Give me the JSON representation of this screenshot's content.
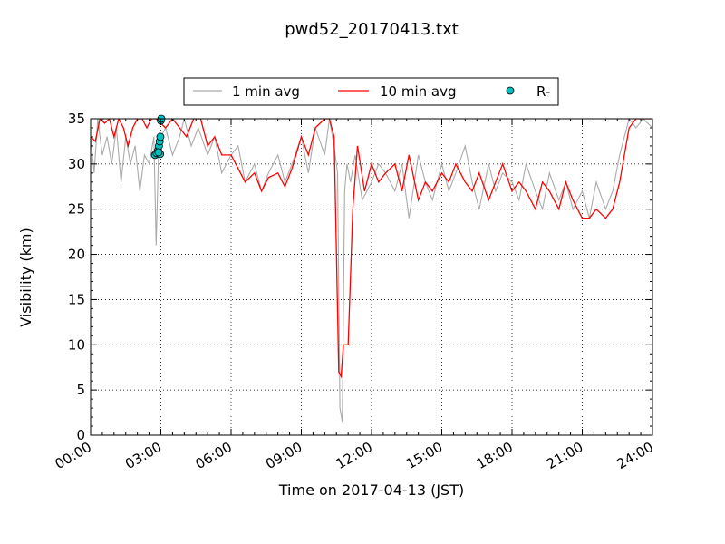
{
  "chart_data": {
    "type": "line",
    "title": "pwd52_20170413.txt",
    "xlabel": "Time on 2017-04-13 (JST)",
    "ylabel": "Visibility (km)",
    "xlim_hours": [
      0,
      24
    ],
    "ylim": [
      0,
      35
    ],
    "x_ticks": [
      "00:00",
      "03:00",
      "06:00",
      "09:00",
      "12:00",
      "15:00",
      "18:00",
      "21:00",
      "24:00"
    ],
    "x_tick_hours": [
      0,
      3,
      6,
      9,
      12,
      15,
      18,
      21,
      24
    ],
    "y_ticks": [
      0,
      5,
      10,
      15,
      20,
      25,
      30,
      35
    ],
    "grid": true,
    "legend_position": "top-center",
    "series": [
      {
        "name": "1 min avg",
        "color": "#aaaaaa",
        "style": "line",
        "x_hours": [
          0.0,
          0.15,
          0.3,
          0.5,
          0.7,
          0.9,
          1.1,
          1.3,
          1.5,
          1.7,
          1.9,
          2.1,
          2.3,
          2.5,
          2.7,
          2.8,
          2.9,
          3.0,
          3.2,
          3.5,
          3.8,
          4.0,
          4.3,
          4.6,
          5.0,
          5.3,
          5.6,
          6.0,
          6.3,
          6.6,
          7.0,
          7.3,
          7.6,
          8.0,
          8.3,
          8.6,
          9.0,
          9.3,
          9.6,
          10.0,
          10.2,
          10.4,
          10.55,
          10.65,
          10.75,
          10.85,
          10.95,
          11.1,
          11.3,
          11.6,
          12.0,
          12.3,
          12.6,
          13.0,
          13.3,
          13.6,
          14.0,
          14.3,
          14.6,
          15.0,
          15.3,
          15.6,
          16.0,
          16.3,
          16.6,
          17.0,
          17.3,
          17.6,
          18.0,
          18.3,
          18.6,
          19.0,
          19.3,
          19.6,
          20.0,
          20.3,
          20.6,
          21.0,
          21.3,
          21.6,
          22.0,
          22.3,
          22.6,
          23.0,
          23.3,
          23.6,
          24.0
        ],
        "y": [
          33,
          29,
          35,
          31,
          33,
          30,
          34,
          28,
          33,
          30,
          32,
          27,
          31,
          30,
          33,
          21,
          31,
          33,
          34,
          31,
          33,
          35,
          32,
          34,
          31,
          33,
          29,
          31,
          32,
          28,
          30,
          27,
          29,
          31,
          28,
          30,
          33,
          29,
          34,
          31,
          35,
          32,
          29,
          3,
          1.5,
          27,
          30,
          28,
          31,
          26,
          28,
          30,
          29,
          27,
          30,
          24,
          31,
          28,
          26,
          30,
          27,
          29,
          32,
          28,
          25,
          30,
          27,
          29,
          28,
          26,
          30,
          27,
          25,
          29,
          26,
          28,
          25,
          27,
          24,
          28,
          25,
          27,
          31,
          35,
          34,
          35,
          34
        ]
      },
      {
        "name": "10 min avg",
        "color": "#ff0000",
        "style": "line",
        "x_hours": [
          0.0,
          0.2,
          0.4,
          0.6,
          0.8,
          1.0,
          1.2,
          1.4,
          1.6,
          1.8,
          2.0,
          2.2,
          2.4,
          2.6,
          2.8,
          3.0,
          3.2,
          3.5,
          3.8,
          4.1,
          4.4,
          4.7,
          5.0,
          5.3,
          5.6,
          6.0,
          6.3,
          6.6,
          7.0,
          7.3,
          7.6,
          8.0,
          8.3,
          8.6,
          9.0,
          9.3,
          9.6,
          10.0,
          10.2,
          10.4,
          10.5,
          10.6,
          10.7,
          10.8,
          10.9,
          11.0,
          11.2,
          11.4,
          11.7,
          12.0,
          12.3,
          12.6,
          13.0,
          13.3,
          13.6,
          14.0,
          14.3,
          14.6,
          15.0,
          15.3,
          15.6,
          16.0,
          16.3,
          16.6,
          17.0,
          17.3,
          17.6,
          18.0,
          18.3,
          18.6,
          19.0,
          19.3,
          19.6,
          20.0,
          20.3,
          20.6,
          21.0,
          21.3,
          21.6,
          22.0,
          22.3,
          22.6,
          23.0,
          23.3,
          23.6,
          24.0
        ],
        "y": [
          33,
          32.5,
          35,
          34.5,
          35,
          33,
          35,
          34,
          32,
          34,
          35,
          35,
          34,
          35,
          35,
          34.5,
          34,
          35,
          34,
          33,
          35,
          35,
          32,
          33,
          31,
          31,
          29.5,
          28,
          29,
          27,
          28.5,
          29,
          27.5,
          29.5,
          33,
          31,
          34,
          35,
          35,
          33,
          20,
          7,
          6.5,
          10,
          10,
          10,
          25,
          32,
          27,
          30,
          28,
          29,
          30,
          27,
          31,
          26,
          28,
          27,
          29,
          28,
          30,
          28,
          27,
          29,
          26,
          28,
          30,
          27,
          28,
          27,
          25,
          28,
          27,
          25,
          28,
          26,
          24,
          24,
          25,
          24,
          25,
          28,
          34,
          35,
          35,
          35
        ]
      },
      {
        "name": "R-",
        "color": "#00bfbf",
        "style": "scatter",
        "x_hours": [
          2.75,
          2.82,
          2.88,
          2.92,
          2.95,
          2.98,
          3.0,
          3.02,
          2.97,
          2.9
        ],
        "y": [
          31,
          31.2,
          31.5,
          32,
          32.5,
          33,
          34.8,
          35,
          31.1,
          31.3
        ]
      }
    ]
  }
}
